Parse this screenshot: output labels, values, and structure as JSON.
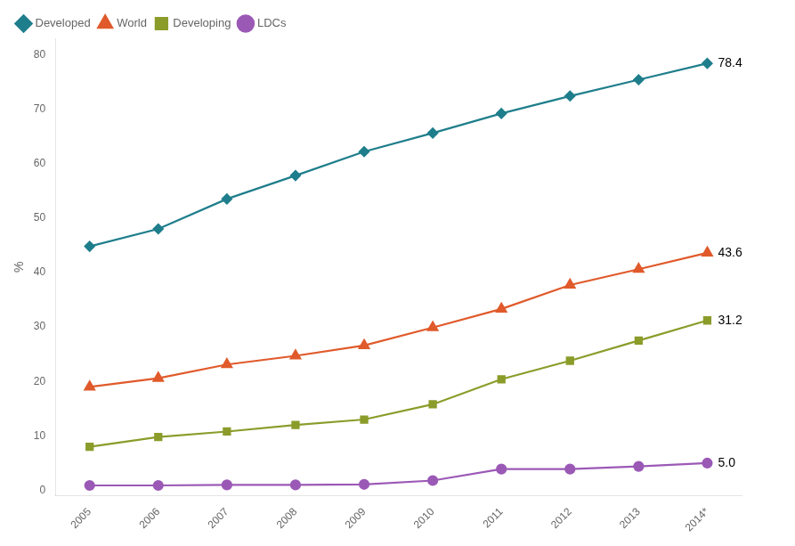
{
  "chart_data": {
    "type": "line",
    "categories": [
      "2005",
      "2006",
      "2007",
      "2008",
      "2009",
      "2010",
      "2011",
      "2012",
      "2013",
      "2014*"
    ],
    "series": [
      {
        "name": "Developed",
        "color": "#1F7E8C",
        "marker": "diamond",
        "values": [
          44.8,
          48.0,
          53.5,
          57.8,
          62.2,
          65.6,
          69.2,
          72.4,
          75.4,
          78.4
        ]
      },
      {
        "name": "World",
        "color": "#E05A2B",
        "marker": "triangle",
        "values": [
          19.0,
          20.6,
          23.1,
          24.7,
          26.6,
          29.9,
          33.3,
          37.7,
          40.6,
          43.6
        ]
      },
      {
        "name": "Developing",
        "color": "#8B9C2A",
        "marker": "square",
        "values": [
          8.0,
          9.8,
          10.8,
          12.0,
          13.0,
          15.8,
          20.4,
          23.8,
          27.5,
          31.2
        ]
      },
      {
        "name": "LDCs",
        "color": "#9B59B6",
        "marker": "circle",
        "values": [
          0.9,
          0.9,
          1.0,
          1.0,
          1.1,
          1.8,
          3.9,
          3.9,
          4.4,
          5.0
        ]
      }
    ],
    "y_label": "%",
    "ylim": [
      -1,
      83
    ],
    "yticks": [
      0,
      10,
      20,
      30,
      40,
      50,
      60,
      70,
      80
    ],
    "grid": false,
    "legend": "upper left",
    "annotations": [
      {
        "text": "78.4",
        "x": "2014*",
        "y": 78.4
      },
      {
        "text": "43.6",
        "x": "2014*",
        "y": 43.6
      },
      {
        "text": "31.2",
        "x": "2014*",
        "y": 31.2
      },
      {
        "text": "5.0",
        "x": "2014*",
        "y": 5.0
      }
    ]
  }
}
